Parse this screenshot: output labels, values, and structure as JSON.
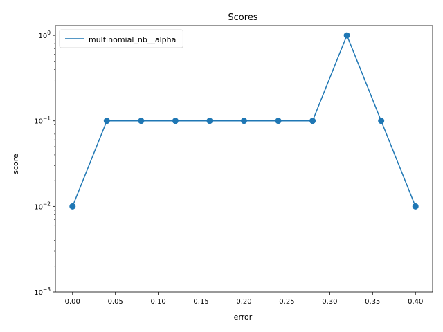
{
  "chart_data": {
    "type": "line",
    "title": "Scores",
    "xlabel": "error",
    "ylabel": "score",
    "yscale": "log",
    "xlim": [
      -0.02,
      0.42
    ],
    "ylim": [
      0.001,
      1.3
    ],
    "x_ticks": [
      0.0,
      0.05,
      0.1,
      0.15,
      0.2,
      0.25,
      0.3,
      0.35,
      0.4
    ],
    "x_tick_labels": [
      "0.00",
      "0.05",
      "0.10",
      "0.15",
      "0.20",
      "0.25",
      "0.30",
      "0.35",
      "0.40"
    ],
    "y_ticks": [
      0.001,
      0.01,
      0.1,
      1
    ],
    "y_tick_labels": [
      {
        "base": "10",
        "exp": "−3"
      },
      {
        "base": "10",
        "exp": "−2"
      },
      {
        "base": "10",
        "exp": "−1"
      },
      {
        "base": "10",
        "exp": "0"
      }
    ],
    "legend_position": "top-left",
    "grid": false,
    "series": [
      {
        "name": "multinomial_nb__alpha",
        "color": "#1f77b4",
        "marker": "circle",
        "x": [
          0.0,
          0.04,
          0.08,
          0.12,
          0.16,
          0.2,
          0.24,
          0.28,
          0.32,
          0.36,
          0.4
        ],
        "y": [
          0.01,
          0.1,
          0.1,
          0.1,
          0.1,
          0.1,
          0.1,
          0.1,
          1.0,
          0.1,
          0.01
        ]
      }
    ]
  }
}
